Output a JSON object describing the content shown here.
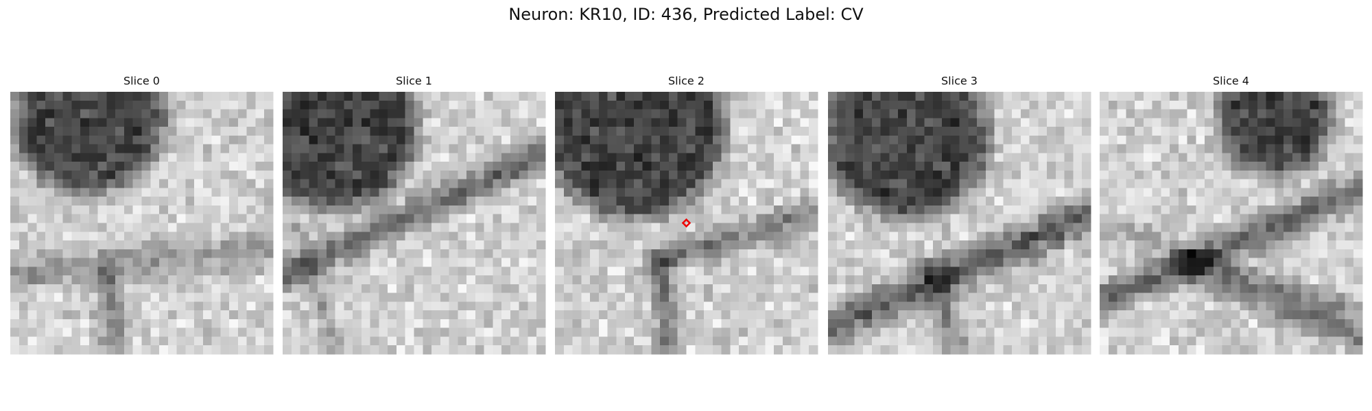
{
  "title": "Neuron: KR10, ID: 436, Predicted Label: CV",
  "panels": [
    {
      "title": "Slice 0"
    },
    {
      "title": "Slice 1"
    },
    {
      "title": "Slice 2"
    },
    {
      "title": "Slice 3"
    },
    {
      "title": "Slice 4"
    }
  ]
}
